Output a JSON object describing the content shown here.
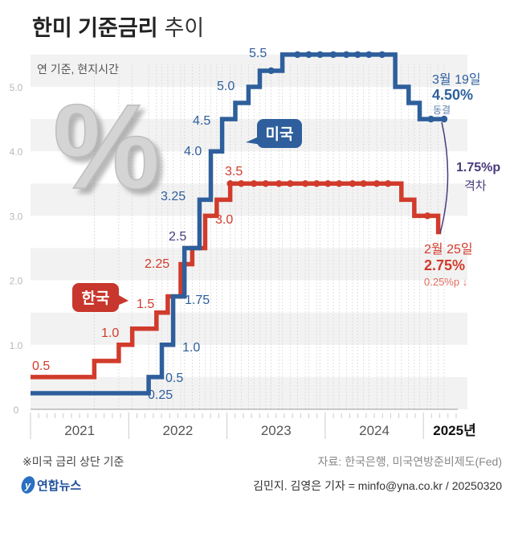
{
  "title": {
    "bold": "한미 기준금리",
    "regular": "추이"
  },
  "subtitle": "연 기준, 현지시간",
  "note": "※미국 금리 상단 기준",
  "source": "자료: 한국은행, 미국연방준비제도(Fed)",
  "credit": "김민지. 김영은 기자 = minfo@yna.co.kr / 20250320",
  "logo": {
    "text": "연합뉴스",
    "glyph": "y"
  },
  "percent_graphic": "%",
  "colors": {
    "us": "#2e5f9c",
    "korea": "#d13b2b",
    "gap": "#4a3a7c",
    "grid_band": "#f2f2f2",
    "axis_text": "#b8b8b8"
  },
  "chart_data": {
    "type": "line",
    "step": true,
    "ylim": [
      0,
      5.5
    ],
    "yticks": [
      "0",
      "1.0",
      "2.0",
      "3.0",
      "4.0",
      "5.0"
    ],
    "ytick_values": [
      0,
      1,
      2,
      3,
      4,
      5
    ],
    "xlim": [
      "2021-01-01",
      "2025-04-15"
    ],
    "xticks": [
      "2021",
      "2022",
      "2023",
      "2024",
      "2025년"
    ],
    "grid": "horizontal bands",
    "series": [
      {
        "name": "미국",
        "color": "#2e5f9c",
        "start": {
          "date": "2021-01-01",
          "value": 0.25
        },
        "changes": [
          {
            "date": "2022-03-16",
            "value": 0.5
          },
          {
            "date": "2022-05-04",
            "value": 1.0
          },
          {
            "date": "2022-06-15",
            "value": 1.75
          },
          {
            "date": "2022-07-27",
            "value": 2.5
          },
          {
            "date": "2022-09-21",
            "value": 3.25
          },
          {
            "date": "2022-11-02",
            "value": 4.0
          },
          {
            "date": "2022-12-14",
            "value": 4.5
          },
          {
            "date": "2023-02-01",
            "value": 4.75
          },
          {
            "date": "2023-03-22",
            "value": 5.0
          },
          {
            "date": "2023-05-03",
            "value": 5.25
          },
          {
            "date": "2023-07-26",
            "value": 5.5
          },
          {
            "date": "2024-09-18",
            "value": 5.0
          },
          {
            "date": "2024-11-07",
            "value": 4.75
          },
          {
            "date": "2024-12-18",
            "value": 4.5
          }
        ],
        "holds": [
          "2023-06-14",
          "2023-09-20",
          "2023-11-01",
          "2023-12-13",
          "2024-01-31",
          "2024-03-20",
          "2024-05-01",
          "2024-06-12",
          "2024-07-31",
          "2025-01-29",
          "2025-03-19"
        ],
        "end": "2025-03-19",
        "labels": [
          "0.25",
          "0.5",
          "1.0",
          "1.75",
          "2.5",
          "3.25",
          "4.0",
          "4.5",
          "5.0",
          "5.5"
        ]
      },
      {
        "name": "한국",
        "color": "#d13b2b",
        "start": {
          "date": "2021-01-01",
          "value": 0.5
        },
        "changes": [
          {
            "date": "2021-08-26",
            "value": 0.75
          },
          {
            "date": "2021-11-25",
            "value": 1.0
          },
          {
            "date": "2022-01-14",
            "value": 1.25
          },
          {
            "date": "2022-04-14",
            "value": 1.5
          },
          {
            "date": "2022-05-26",
            "value": 1.75
          },
          {
            "date": "2022-07-13",
            "value": 2.25
          },
          {
            "date": "2022-08-25",
            "value": 2.5
          },
          {
            "date": "2022-10-12",
            "value": 3.0
          },
          {
            "date": "2022-11-24",
            "value": 3.25
          },
          {
            "date": "2023-01-13",
            "value": 3.5
          },
          {
            "date": "2024-10-11",
            "value": 3.25
          },
          {
            "date": "2024-11-28",
            "value": 3.0
          },
          {
            "date": "2025-02-25",
            "value": 2.75
          }
        ],
        "holds": [
          "2023-01-13",
          "2023-02-23",
          "2023-04-11",
          "2023-05-25",
          "2023-07-13",
          "2023-08-24",
          "2023-10-19",
          "2023-11-30",
          "2024-01-11",
          "2024-02-22",
          "2024-04-12",
          "2024-05-23",
          "2024-07-11",
          "2024-08-22",
          "2025-01-16"
        ],
        "end": "2025-03-08",
        "labels": [
          "0.5",
          "1.0",
          "1.5",
          "2.25",
          "3.0",
          "3.5"
        ]
      }
    ],
    "annotations": {
      "us_bubble": "미국",
      "korea_bubble": "한국",
      "us_latest": {
        "date": "3월 19일",
        "value": "4.50%",
        "note": "동결"
      },
      "korea_latest": {
        "date": "2월 25일",
        "value": "2.75%",
        "note": "0.25%p ↓"
      },
      "gap": {
        "value": "1.75%p",
        "label": "격차"
      }
    }
  }
}
